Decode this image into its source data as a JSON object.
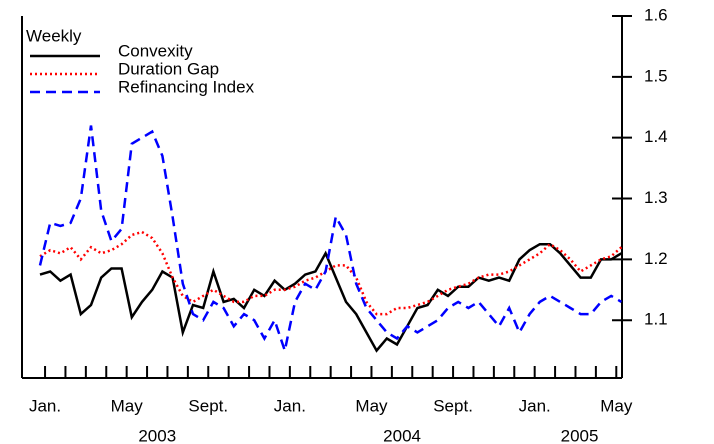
{
  "chart_data": {
    "type": "line",
    "legend_title": "Weekly",
    "legend_position": "upper left",
    "x": [
      -0.25,
      0.25,
      0.75,
      1.25,
      1.75,
      2.25,
      2.75,
      3.25,
      3.75,
      4.25,
      4.75,
      5.25,
      5.75,
      6.25,
      6.75,
      7.25,
      7.75,
      8.25,
      8.75,
      9.25,
      9.75,
      10.25,
      10.75,
      11.25,
      11.75,
      12.25,
      12.75,
      13.25,
      13.75,
      14.25,
      14.75,
      15.25,
      15.75,
      16.25,
      16.75,
      17.25,
      17.75,
      18.25,
      18.75,
      19.25,
      19.75,
      20.25,
      20.75,
      21.25,
      21.75,
      22.25,
      22.75,
      23.25,
      23.75,
      24.25,
      24.75,
      25.25,
      25.75,
      26.25,
      26.75,
      27.25,
      27.75,
      28.25
    ],
    "series": [
      {
        "name": "Convexity",
        "color": "#000000",
        "dash": "solid",
        "values": [
          1.175,
          1.18,
          1.165,
          1.175,
          1.11,
          1.125,
          1.17,
          1.185,
          1.185,
          1.105,
          1.13,
          1.15,
          1.18,
          1.17,
          1.08,
          1.125,
          1.12,
          1.18,
          1.13,
          1.135,
          1.12,
          1.15,
          1.14,
          1.165,
          1.15,
          1.16,
          1.175,
          1.18,
          1.21,
          1.17,
          1.13,
          1.11,
          1.08,
          1.05,
          1.07,
          1.06,
          1.09,
          1.12,
          1.125,
          1.15,
          1.14,
          1.155,
          1.155,
          1.17,
          1.165,
          1.17,
          1.165,
          1.2,
          1.215,
          1.225,
          1.225,
          1.21,
          1.19,
          1.17,
          1.17,
          1.2,
          1.2,
          1.21
        ]
      },
      {
        "name": "Duration Gap",
        "color": "#ff0000",
        "dash": "dotted",
        "values": [
          1.205,
          1.215,
          1.21,
          1.22,
          1.2,
          1.22,
          1.21,
          1.215,
          1.225,
          1.24,
          1.245,
          1.235,
          1.21,
          1.17,
          1.14,
          1.13,
          1.14,
          1.15,
          1.14,
          1.13,
          1.13,
          1.14,
          1.14,
          1.15,
          1.15,
          1.155,
          1.165,
          1.17,
          1.18,
          1.19,
          1.19,
          1.17,
          1.13,
          1.11,
          1.11,
          1.12,
          1.12,
          1.125,
          1.13,
          1.14,
          1.15,
          1.155,
          1.16,
          1.17,
          1.175,
          1.175,
          1.18,
          1.19,
          1.2,
          1.21,
          1.225,
          1.215,
          1.2,
          1.18,
          1.19,
          1.2,
          1.205,
          1.22
        ]
      },
      {
        "name": "Refinancing Index",
        "color": "#0000ff",
        "dash": "dashed",
        "values": [
          1.19,
          1.26,
          1.255,
          1.26,
          1.3,
          1.42,
          1.28,
          1.23,
          1.25,
          1.39,
          1.4,
          1.41,
          1.37,
          1.27,
          1.16,
          1.11,
          1.1,
          1.13,
          1.12,
          1.09,
          1.11,
          1.1,
          1.07,
          1.1,
          1.05,
          1.13,
          1.16,
          1.15,
          1.18,
          1.27,
          1.24,
          1.16,
          1.12,
          1.1,
          1.08,
          1.07,
          1.09,
          1.08,
          1.09,
          1.1,
          1.12,
          1.13,
          1.12,
          1.13,
          1.11,
          1.09,
          1.12,
          1.08,
          1.11,
          1.13,
          1.14,
          1.13,
          1.12,
          1.11,
          1.11,
          1.13,
          1.14,
          1.13
        ]
      }
    ],
    "xlim": [
      -1.13,
      28.28
    ],
    "xticks": [
      {
        "value": 0,
        "label": "Jan."
      },
      {
        "value": 4,
        "label": "May"
      },
      {
        "value": 8,
        "label": "Sept."
      },
      {
        "value": 12,
        "label": "Jan."
      },
      {
        "value": 16,
        "label": "May"
      },
      {
        "value": 20,
        "label": "Sept."
      },
      {
        "value": 24,
        "label": "Jan."
      },
      {
        "value": 28,
        "label": "May"
      }
    ],
    "xminor_ticks": [
      1,
      2,
      3,
      5,
      6,
      7,
      9,
      10,
      11,
      13,
      14,
      15,
      17,
      18,
      19,
      21,
      22,
      23,
      25,
      26,
      27
    ],
    "year_labels": [
      {
        "value": 5.5,
        "label": "2003"
      },
      {
        "value": 17.5,
        "label": "2004"
      },
      {
        "value": 26.2,
        "label": "2005"
      }
    ],
    "ylim": [
      1.005,
      1.6
    ],
    "yticks": [
      1.1,
      1.2,
      1.3,
      1.4,
      1.5,
      1.6
    ],
    "y_axis_side": "right"
  }
}
